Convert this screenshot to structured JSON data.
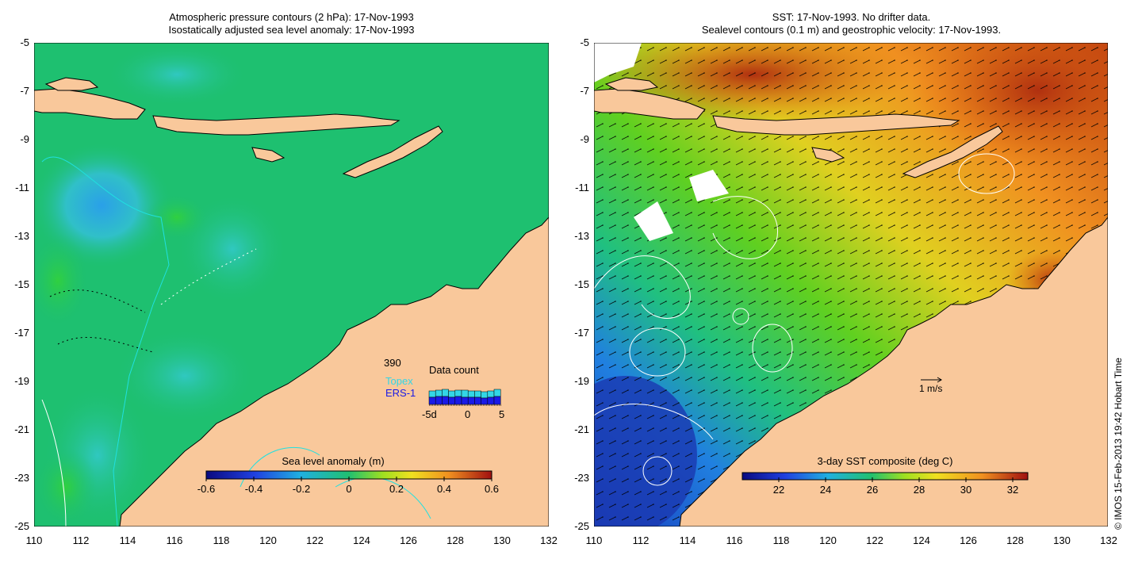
{
  "left_panel": {
    "title_line1": "Atmospheric pressure contours (2 hPa): 17-Nov-1993",
    "title_line2": "Isostatically adjusted sea level anomaly: 17-Nov-1993",
    "colorbar": {
      "label": "Sea level anomaly (m)",
      "ticks": [
        "-0.6",
        "-0.4",
        "-0.2",
        "0",
        "0.2",
        "0.4",
        "0.6"
      ]
    },
    "data_count": {
      "title": "Data count",
      "total": "390",
      "topex_label": "Topex",
      "ers_label": "ERS-1",
      "axis_ticks": [
        "-5d",
        "0",
        "5"
      ],
      "topex_color": "#33d6e6",
      "ers_color": "#1a1ae6"
    }
  },
  "right_panel": {
    "title_line1": "SST: 17-Nov-1993. No drifter data.",
    "title_line2": "Sealevel contours (0.1 m) and geostrophic velocity: 17-Nov-1993.",
    "colorbar": {
      "label": "3-day SST composite (deg C)",
      "ticks": [
        "22",
        "24",
        "26",
        "28",
        "30",
        "32"
      ]
    },
    "velocity_scale_label": "1 m/s"
  },
  "axes": {
    "y_ticks": [
      "-5",
      "-7",
      "-9",
      "-11",
      "-13",
      "-15",
      "-17",
      "-19",
      "-21",
      "-23",
      "-25"
    ],
    "x_ticks": [
      "110",
      "112",
      "114",
      "116",
      "118",
      "120",
      "122",
      "124",
      "126",
      "128",
      "130",
      "132"
    ]
  },
  "copyright": "© IMOS 15-Feb-2013 19:42 Hobart Time",
  "colors": {
    "land": "#f9c89b",
    "sea_green": "#1ec070",
    "sst_warm": "#e06a10",
    "sst_cool": "#1a40c0"
  }
}
